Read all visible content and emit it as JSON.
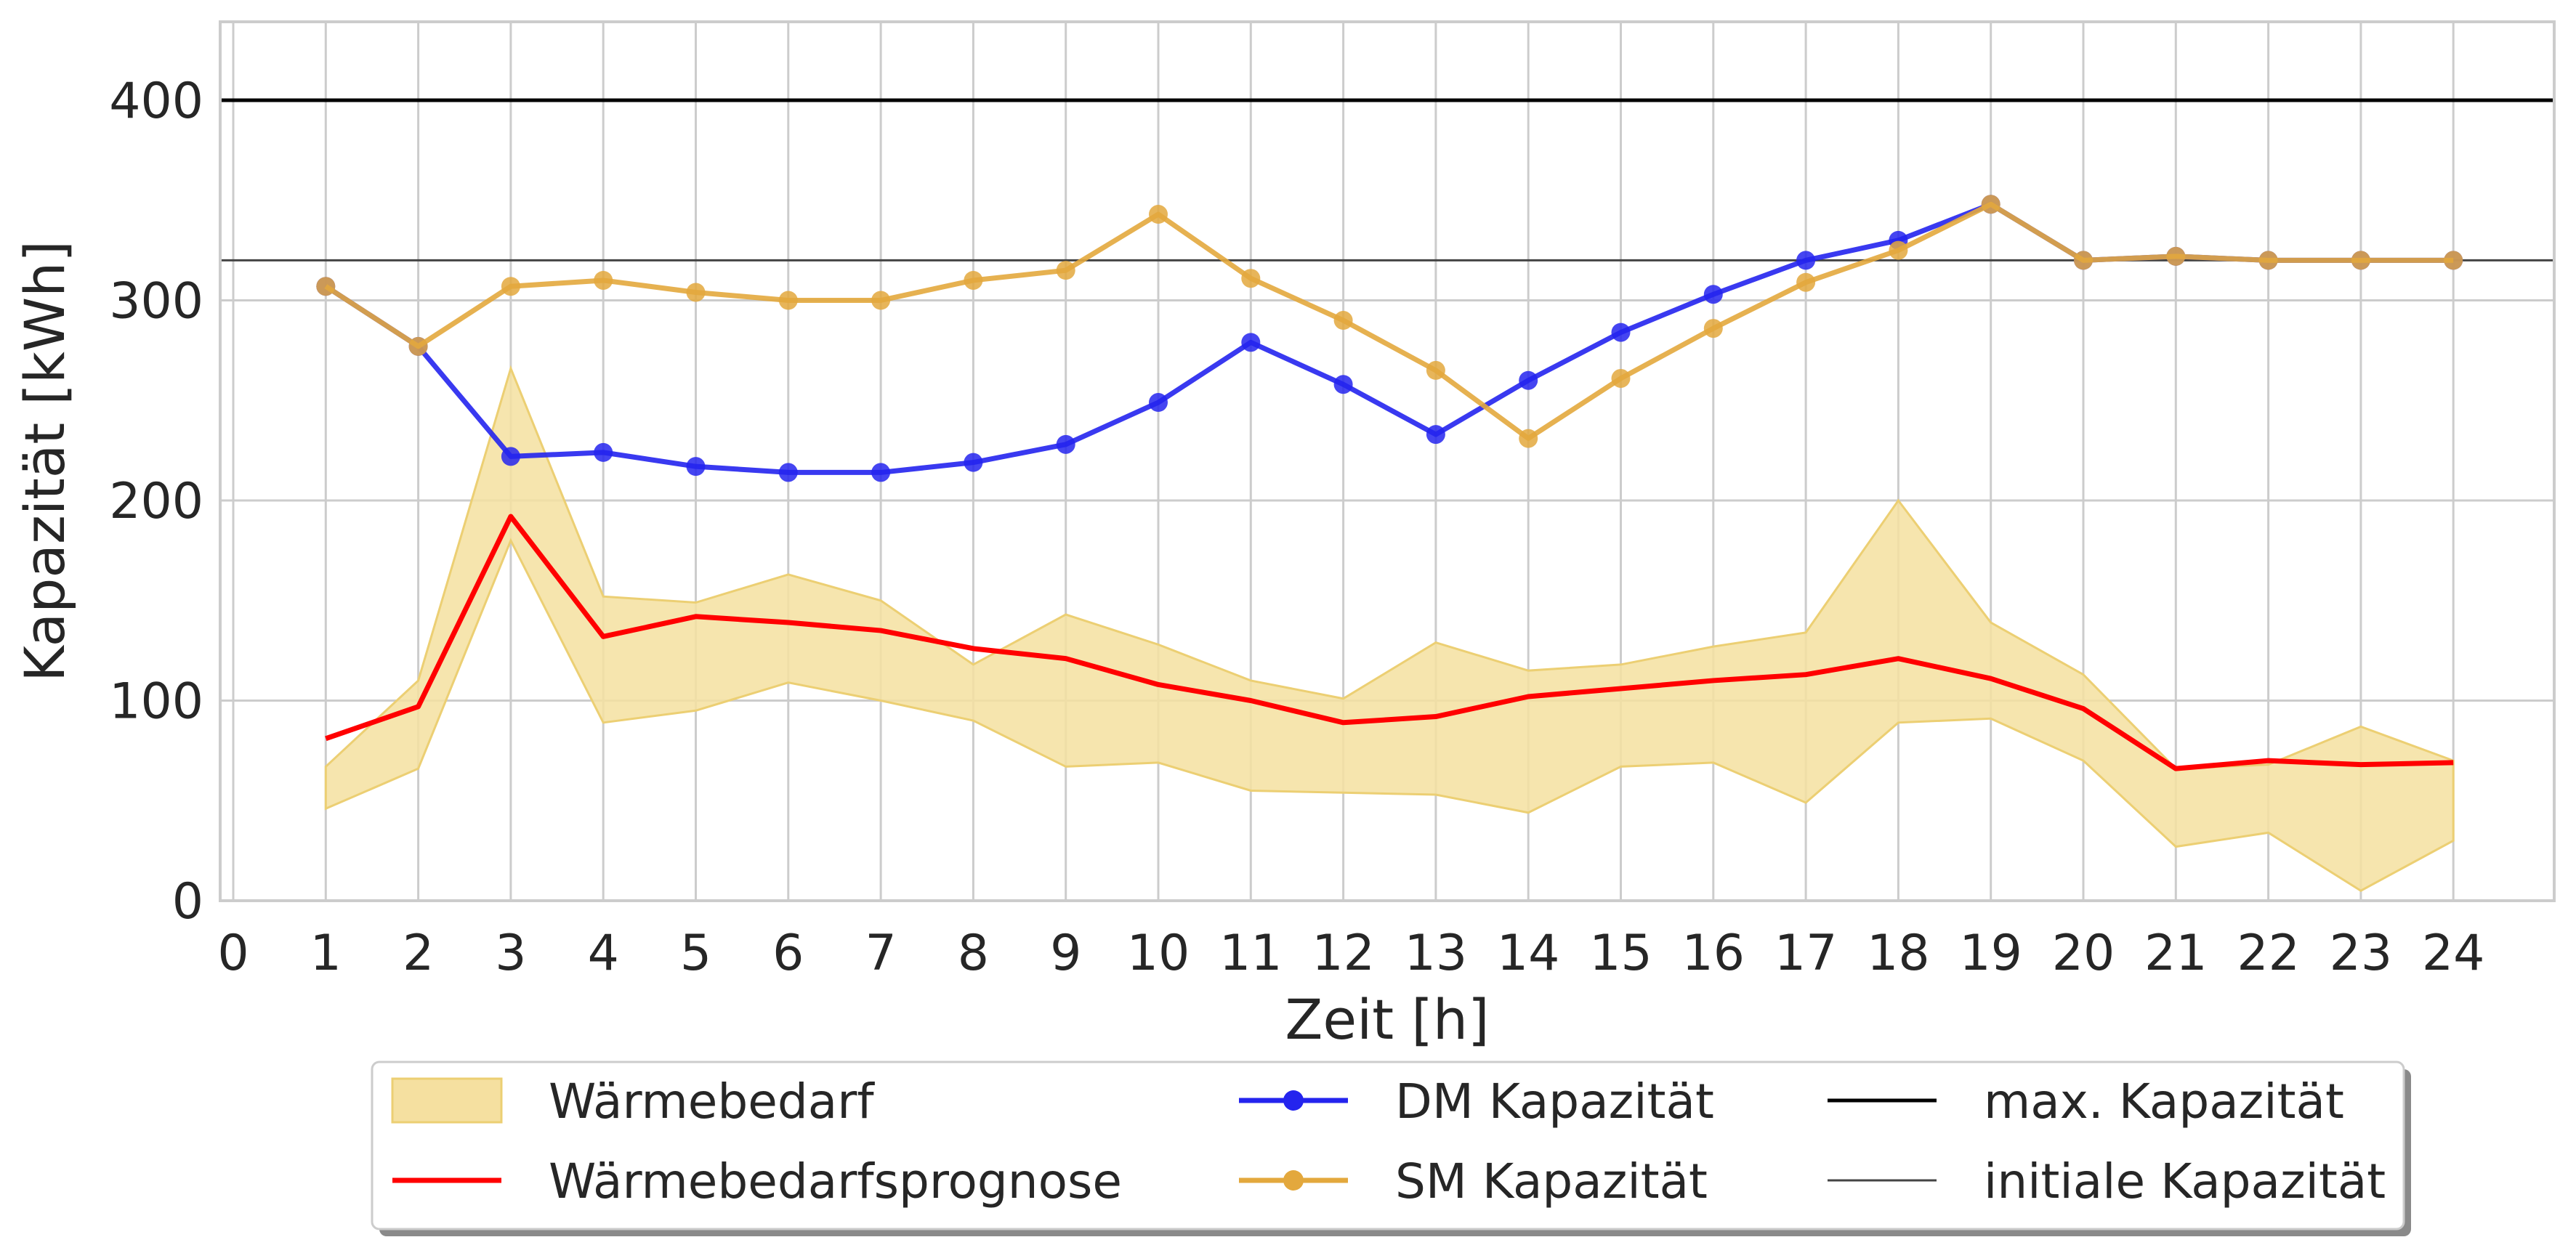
{
  "chart_data": {
    "type": "line",
    "xlabel": "Zeit [h]",
    "ylabel": "Kapazität [kWh]",
    "xlim": [
      0,
      25
    ],
    "ylim": [
      0,
      440
    ],
    "x_ticks": [
      0,
      1,
      2,
      3,
      4,
      5,
      6,
      7,
      8,
      9,
      10,
      11,
      12,
      13,
      14,
      15,
      16,
      17,
      18,
      19,
      20,
      21,
      22,
      23,
      24
    ],
    "y_ticks": [
      0,
      100,
      200,
      300,
      400
    ],
    "grid": true,
    "legend_placement": "bottom",
    "x": [
      1,
      2,
      3,
      4,
      5,
      6,
      7,
      8,
      9,
      10,
      11,
      12,
      13,
      14,
      15,
      16,
      17,
      18,
      19,
      20,
      21,
      22,
      23,
      24
    ],
    "band": {
      "name": "Wärmebedarf",
      "color": "#f5e0a0",
      "lower": [
        46,
        66,
        180,
        89,
        95,
        109,
        100,
        90,
        67,
        69,
        55,
        54,
        53,
        44,
        67,
        69,
        49,
        89,
        91,
        70,
        27,
        34,
        5,
        30
      ],
      "upper": [
        67,
        110,
        266,
        152,
        149,
        163,
        150,
        118,
        143,
        128,
        110,
        101,
        129,
        115,
        118,
        127,
        134,
        200,
        139,
        113,
        66,
        68,
        87,
        70
      ]
    },
    "series": [
      {
        "name": "Wärmebedarfsprognose",
        "color": "#ff0000",
        "marker": false,
        "values": [
          81,
          97,
          192,
          132,
          142,
          139,
          135,
          126,
          121,
          108,
          100,
          89,
          92,
          102,
          106,
          110,
          113,
          121,
          111,
          96,
          66,
          70,
          68,
          69
        ]
      },
      {
        "name": "DM Kapazität",
        "color": "#2424ee",
        "marker": true,
        "values": [
          307,
          277,
          222,
          224,
          217,
          214,
          214,
          219,
          228,
          249,
          279,
          258,
          233,
          260,
          284,
          303,
          320,
          330,
          348,
          320,
          322,
          320,
          320,
          320
        ]
      },
      {
        "name": "SM Kapazität",
        "color": "#e3a83d",
        "marker": true,
        "values": [
          307,
          277,
          307,
          310,
          304,
          300,
          300,
          310,
          315,
          343,
          311,
          290,
          265,
          231,
          261,
          286,
          309,
          325,
          348,
          320,
          322,
          320,
          320,
          320
        ]
      },
      {
        "name": "max. Kapazität",
        "color": "#000000",
        "marker": false,
        "constant": 400
      },
      {
        "name": "initiale Kapazität",
        "color": "#444444",
        "marker": false,
        "constant": 320
      }
    ]
  }
}
